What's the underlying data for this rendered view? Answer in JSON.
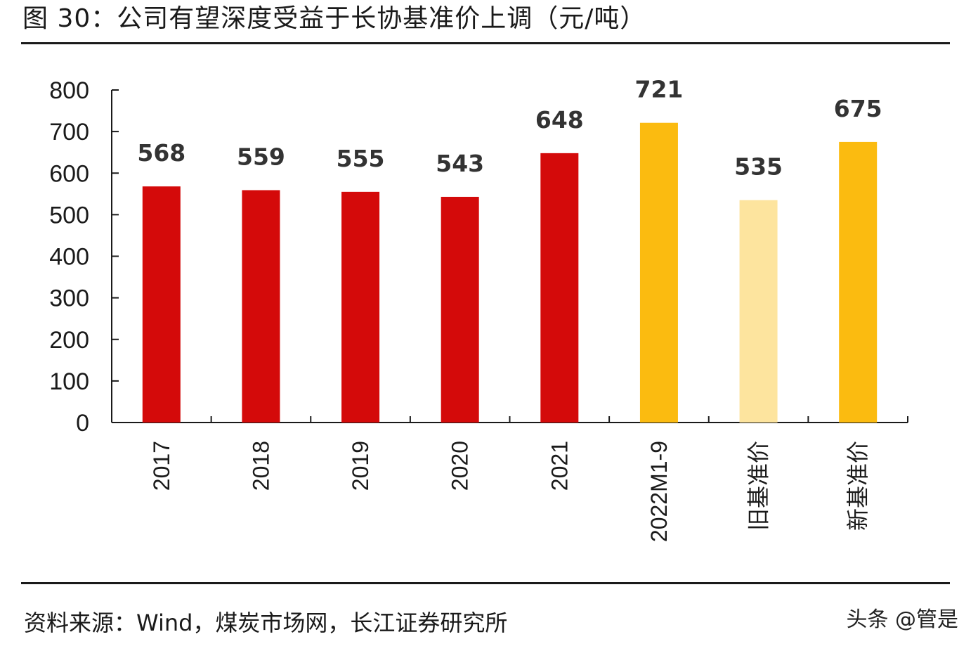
{
  "figure": {
    "title": "图 30：公司有望深度受益于长协基准价上调（元/吨）",
    "source": "资料来源：Wind，煤炭市场网，长江证券研究所",
    "watermark": "头条 @管是"
  },
  "chart_data": {
    "type": "bar",
    "title": "图 30：公司有望深度受益于长协基准价上调（元/吨）",
    "xlabel": "",
    "ylabel": "",
    "categories": [
      "2017",
      "2018",
      "2019",
      "2020",
      "2021",
      "2022M1-9",
      "旧基准价",
      "新基准价"
    ],
    "values": [
      568,
      559,
      555,
      543,
      648,
      721,
      535,
      675
    ],
    "colors": [
      "#d40a0a",
      "#d40a0a",
      "#d40a0a",
      "#d40a0a",
      "#d40a0a",
      "#fbbb10",
      "#fde49e",
      "#fbbb10"
    ],
    "ylim": [
      0,
      800
    ],
    "yticks": [
      0,
      100,
      200,
      300,
      400,
      500,
      600,
      700,
      800
    ],
    "grid": false,
    "legend": "none"
  }
}
